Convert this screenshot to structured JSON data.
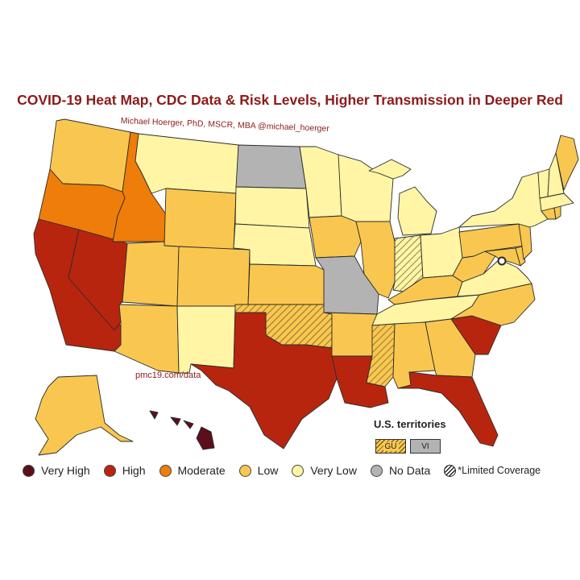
{
  "title": "COVID-19 Heat Map, CDC Data & Risk Levels, Higher Transmission in Deeper Red",
  "credit": "Michael Hoerger, PhD, MSCR, MBA @michael_hoerger",
  "source_url": "pmc19.com/data",
  "territories": {
    "title": "U.S. territories",
    "items": [
      {
        "code": "GU",
        "level": "Low",
        "limited": true
      },
      {
        "code": "VI",
        "level": "No Data",
        "limited": false
      }
    ]
  },
  "legend": [
    {
      "label": "Very High",
      "color": "#5b0f1a"
    },
    {
      "label": "High",
      "color": "#b8250f"
    },
    {
      "label": "Moderate",
      "color": "#ef7d0a"
    },
    {
      "label": "Low",
      "color": "#f9c74f"
    },
    {
      "label": "Very Low",
      "color": "#fff5a5"
    },
    {
      "label": "No Data",
      "color": "#b3b3b3"
    },
    {
      "label": "*Limited Coverage",
      "color": "hatched"
    }
  ],
  "states": [
    {
      "code": "WA",
      "level": "Low"
    },
    {
      "code": "OR",
      "level": "Moderate"
    },
    {
      "code": "CA",
      "level": "High"
    },
    {
      "code": "NV",
      "level": "High"
    },
    {
      "code": "ID",
      "level": "Moderate"
    },
    {
      "code": "MT",
      "level": "Very Low"
    },
    {
      "code": "WY",
      "level": "Low"
    },
    {
      "code": "UT",
      "level": "Low"
    },
    {
      "code": "AZ",
      "level": "Low"
    },
    {
      "code": "CO",
      "level": "Low"
    },
    {
      "code": "NM",
      "level": "Very Low"
    },
    {
      "code": "ND",
      "level": "No Data"
    },
    {
      "code": "SD",
      "level": "Very Low"
    },
    {
      "code": "NE",
      "level": "Very Low"
    },
    {
      "code": "KS",
      "level": "Low"
    },
    {
      "code": "OK",
      "level": "Low",
      "limited": true
    },
    {
      "code": "TX",
      "level": "High"
    },
    {
      "code": "MN",
      "level": "Very Low"
    },
    {
      "code": "IA",
      "level": "Low"
    },
    {
      "code": "MO",
      "level": "No Data"
    },
    {
      "code": "AR",
      "level": "Low"
    },
    {
      "code": "LA",
      "level": "High"
    },
    {
      "code": "WI",
      "level": "Very Low"
    },
    {
      "code": "IL",
      "level": "Low"
    },
    {
      "code": "MI",
      "level": "Very Low"
    },
    {
      "code": "IN",
      "level": "Very Low",
      "limited": true
    },
    {
      "code": "OH",
      "level": "Very Low"
    },
    {
      "code": "KY",
      "level": "Low"
    },
    {
      "code": "TN",
      "level": "Very Low"
    },
    {
      "code": "MS",
      "level": "Low",
      "limited": true
    },
    {
      "code": "AL",
      "level": "Low"
    },
    {
      "code": "GA",
      "level": "Low"
    },
    {
      "code": "FL",
      "level": "High"
    },
    {
      "code": "SC",
      "level": "High"
    },
    {
      "code": "NC",
      "level": "Low"
    },
    {
      "code": "VA",
      "level": "Very Low"
    },
    {
      "code": "WV",
      "level": "Low"
    },
    {
      "code": "PA",
      "level": "Low"
    },
    {
      "code": "NY",
      "level": "Very Low"
    },
    {
      "code": "VT",
      "level": "Very Low"
    },
    {
      "code": "NH",
      "level": "Very Low"
    },
    {
      "code": "ME",
      "level": "Low"
    },
    {
      "code": "MA",
      "level": "Very Low"
    },
    {
      "code": "CT",
      "level": "Low"
    },
    {
      "code": "RI",
      "level": "Low"
    },
    {
      "code": "NJ",
      "level": "Low"
    },
    {
      "code": "DE",
      "level": "Low"
    },
    {
      "code": "MD",
      "level": "Low"
    },
    {
      "code": "AK",
      "level": "Low"
    },
    {
      "code": "HI",
      "level": "Very High"
    }
  ]
}
